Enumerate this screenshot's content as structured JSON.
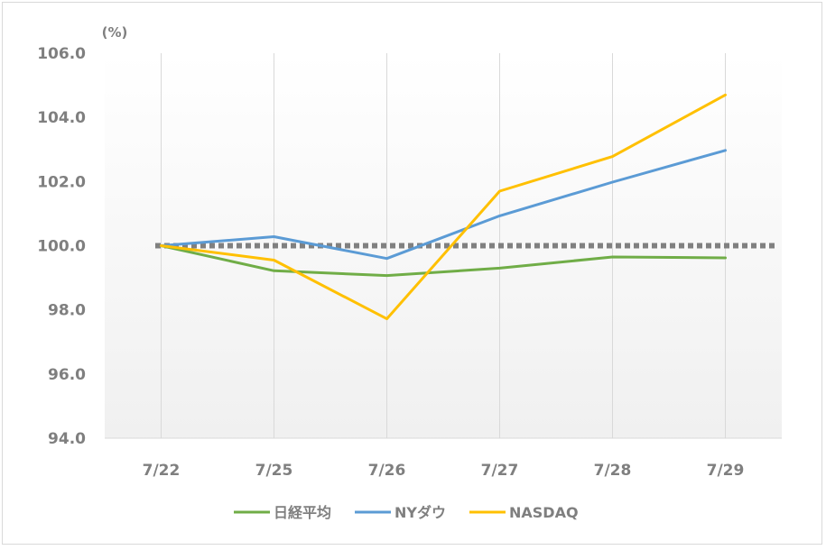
{
  "chart_data": {
    "type": "line",
    "unit_label": "(%)",
    "categories": [
      "7/22",
      "7/25",
      "7/26",
      "7/27",
      "7/28",
      "7/29"
    ],
    "ylim": [
      94.0,
      106.0
    ],
    "yticks": [
      "94.0",
      "96.0",
      "98.0",
      "100.0",
      "102.0",
      "104.0",
      "106.0"
    ],
    "grid": "vertical",
    "reference_line": {
      "value": 100.0,
      "style": "dotted",
      "color": "#808080"
    },
    "legend_position": "bottom",
    "series": [
      {
        "name": "日経平均",
        "color": "#70ad47",
        "values": [
          100.0,
          99.22,
          99.07,
          99.3,
          99.65,
          99.62
        ]
      },
      {
        "name": "NYダウ",
        "color": "#5b9bd5",
        "values": [
          100.0,
          100.28,
          99.6,
          100.93,
          101.98,
          102.97
        ]
      },
      {
        "name": "NASDAQ",
        "color": "#ffc000",
        "values": [
          100.0,
          99.55,
          97.72,
          101.7,
          102.78,
          104.7
        ]
      }
    ]
  }
}
